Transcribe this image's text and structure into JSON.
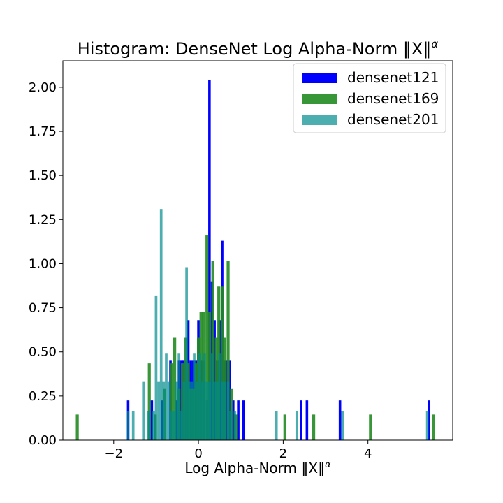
{
  "chart_data": {
    "type": "bar",
    "title": "Histogram: DenseNet Log Alpha-Norm ‖X‖",
    "title_math_suffix": "α",
    "xlabel": "Log Alpha-Norm ‖X‖",
    "xlabel_math_suffix": "α",
    "ylabel": "",
    "xlim": [
      -3.2,
      6.0
    ],
    "ylim": [
      0,
      2.15
    ],
    "xticks": [
      -2,
      0,
      2,
      4
    ],
    "xtick_labels": [
      "−2",
      "0",
      "2",
      "4"
    ],
    "yticks": [
      0,
      0.25,
      0.5,
      0.75,
      1.0,
      1.25,
      1.5,
      1.75,
      2.0
    ],
    "ytick_labels": [
      "0.00",
      "0.25",
      "0.50",
      "0.75",
      "1.00",
      "1.25",
      "1.50",
      "1.75",
      "2.00"
    ],
    "grid": false,
    "legend_position": "top-right",
    "series": [
      {
        "name": "densenet121",
        "color": "#0000ff",
        "alpha": 1.0,
        "bin_width": 0.0588,
        "bins": [
          {
            "x": -1.66,
            "y": 0.225
          },
          {
            "x": -1.1,
            "y": 0.225
          },
          {
            "x": -0.86,
            "y": 0.225
          },
          {
            "x": -0.66,
            "y": 0.45
          },
          {
            "x": -0.52,
            "y": 0.225
          },
          {
            "x": -0.46,
            "y": 0.45
          },
          {
            "x": -0.4,
            "y": 0.45
          },
          {
            "x": -0.36,
            "y": 0.45
          },
          {
            "x": -0.3,
            "y": 0.45
          },
          {
            "x": -0.24,
            "y": 0.68
          },
          {
            "x": -0.18,
            "y": 0.45
          },
          {
            "x": -0.12,
            "y": 0.45
          },
          {
            "x": -0.06,
            "y": 0.45
          },
          {
            "x": 0.0,
            "y": 0.68
          },
          {
            "x": 0.06,
            "y": 0.45
          },
          {
            "x": 0.12,
            "y": 0.45
          },
          {
            "x": 0.2,
            "y": 0.225
          },
          {
            "x": 0.26,
            "y": 2.04
          },
          {
            "x": 0.32,
            "y": 0.9
          },
          {
            "x": 0.38,
            "y": 0.68
          },
          {
            "x": 0.44,
            "y": 0.45
          },
          {
            "x": 0.5,
            "y": 0.68
          },
          {
            "x": 0.56,
            "y": 1.13
          },
          {
            "x": 0.62,
            "y": 0.45
          },
          {
            "x": 0.68,
            "y": 0.45
          },
          {
            "x": 0.74,
            "y": 0.45
          },
          {
            "x": 0.82,
            "y": 0.225
          },
          {
            "x": 0.94,
            "y": 0.225
          },
          {
            "x": 1.06,
            "y": 0.225
          },
          {
            "x": 2.42,
            "y": 0.225
          },
          {
            "x": 2.56,
            "y": 0.225
          },
          {
            "x": 3.34,
            "y": 0.225
          },
          {
            "x": 5.44,
            "y": 0.225
          }
        ]
      },
      {
        "name": "densenet169",
        "color": "#228b22",
        "alpha": 0.9,
        "bin_width": 0.0699,
        "bins": [
          {
            "x": -2.86,
            "y": 0.145
          },
          {
            "x": -1.16,
            "y": 0.435
          },
          {
            "x": -1.02,
            "y": 0.145
          },
          {
            "x": -0.8,
            "y": 0.29
          },
          {
            "x": -0.64,
            "y": 0.435
          },
          {
            "x": -0.56,
            "y": 0.58
          },
          {
            "x": -0.46,
            "y": 0.29
          },
          {
            "x": -0.38,
            "y": 0.435
          },
          {
            "x": -0.3,
            "y": 0.58
          },
          {
            "x": -0.24,
            "y": 0.435
          },
          {
            "x": -0.18,
            "y": 0.29
          },
          {
            "x": -0.12,
            "y": 0.29
          },
          {
            "x": -0.06,
            "y": 0.435
          },
          {
            "x": 0.0,
            "y": 0.58
          },
          {
            "x": 0.06,
            "y": 0.725
          },
          {
            "x": 0.12,
            "y": 0.725
          },
          {
            "x": 0.2,
            "y": 1.16
          },
          {
            "x": 0.26,
            "y": 0.725
          },
          {
            "x": 0.34,
            "y": 1.015
          },
          {
            "x": 0.42,
            "y": 0.58
          },
          {
            "x": 0.48,
            "y": 0.87
          },
          {
            "x": 0.56,
            "y": 0.87
          },
          {
            "x": 0.62,
            "y": 0.58
          },
          {
            "x": 0.7,
            "y": 1.015
          },
          {
            "x": 0.78,
            "y": 0.29
          },
          {
            "x": 0.88,
            "y": 0.145
          },
          {
            "x": 2.04,
            "y": 0.145
          },
          {
            "x": 2.72,
            "y": 0.145
          },
          {
            "x": 4.06,
            "y": 0.145
          },
          {
            "x": 5.54,
            "y": 0.145
          }
        ]
      },
      {
        "name": "densenet201",
        "color": "#008b8b",
        "alpha": 0.7,
        "bin_width": 0.0611,
        "bins": [
          {
            "x": -1.66,
            "y": 0.165
          },
          {
            "x": -1.54,
            "y": 0.165
          },
          {
            "x": -1.3,
            "y": 0.33
          },
          {
            "x": -1.18,
            "y": 0.165
          },
          {
            "x": -1.06,
            "y": 0.165
          },
          {
            "x": -1.0,
            "y": 0.82
          },
          {
            "x": -0.94,
            "y": 0.33
          },
          {
            "x": -0.88,
            "y": 1.31
          },
          {
            "x": -0.82,
            "y": 0.33
          },
          {
            "x": -0.76,
            "y": 0.49
          },
          {
            "x": -0.7,
            "y": 0.33
          },
          {
            "x": -0.64,
            "y": 0.165
          },
          {
            "x": -0.58,
            "y": 0.165
          },
          {
            "x": -0.52,
            "y": 0.33
          },
          {
            "x": -0.46,
            "y": 0.49
          },
          {
            "x": -0.4,
            "y": 0.165
          },
          {
            "x": -0.34,
            "y": 0.33
          },
          {
            "x": -0.28,
            "y": 0.98
          },
          {
            "x": -0.22,
            "y": 0.33
          },
          {
            "x": -0.16,
            "y": 0.33
          },
          {
            "x": -0.1,
            "y": 0.49
          },
          {
            "x": -0.04,
            "y": 0.33
          },
          {
            "x": 0.02,
            "y": 0.49
          },
          {
            "x": 0.08,
            "y": 0.33
          },
          {
            "x": 0.14,
            "y": 0.49
          },
          {
            "x": 0.2,
            "y": 0.33
          },
          {
            "x": 0.26,
            "y": 0.33
          },
          {
            "x": 0.32,
            "y": 0.49
          },
          {
            "x": 0.38,
            "y": 0.33
          },
          {
            "x": 0.44,
            "y": 0.33
          },
          {
            "x": 0.5,
            "y": 0.49
          },
          {
            "x": 0.56,
            "y": 0.33
          },
          {
            "x": 0.62,
            "y": 0.33
          },
          {
            "x": 0.7,
            "y": 0.33
          },
          {
            "x": 0.76,
            "y": 0.165
          },
          {
            "x": 0.86,
            "y": 0.165
          },
          {
            "x": 1.84,
            "y": 0.165
          },
          {
            "x": 2.32,
            "y": 0.165
          },
          {
            "x": 3.4,
            "y": 0.165
          },
          {
            "x": 5.4,
            "y": 0.165
          }
        ]
      }
    ]
  }
}
